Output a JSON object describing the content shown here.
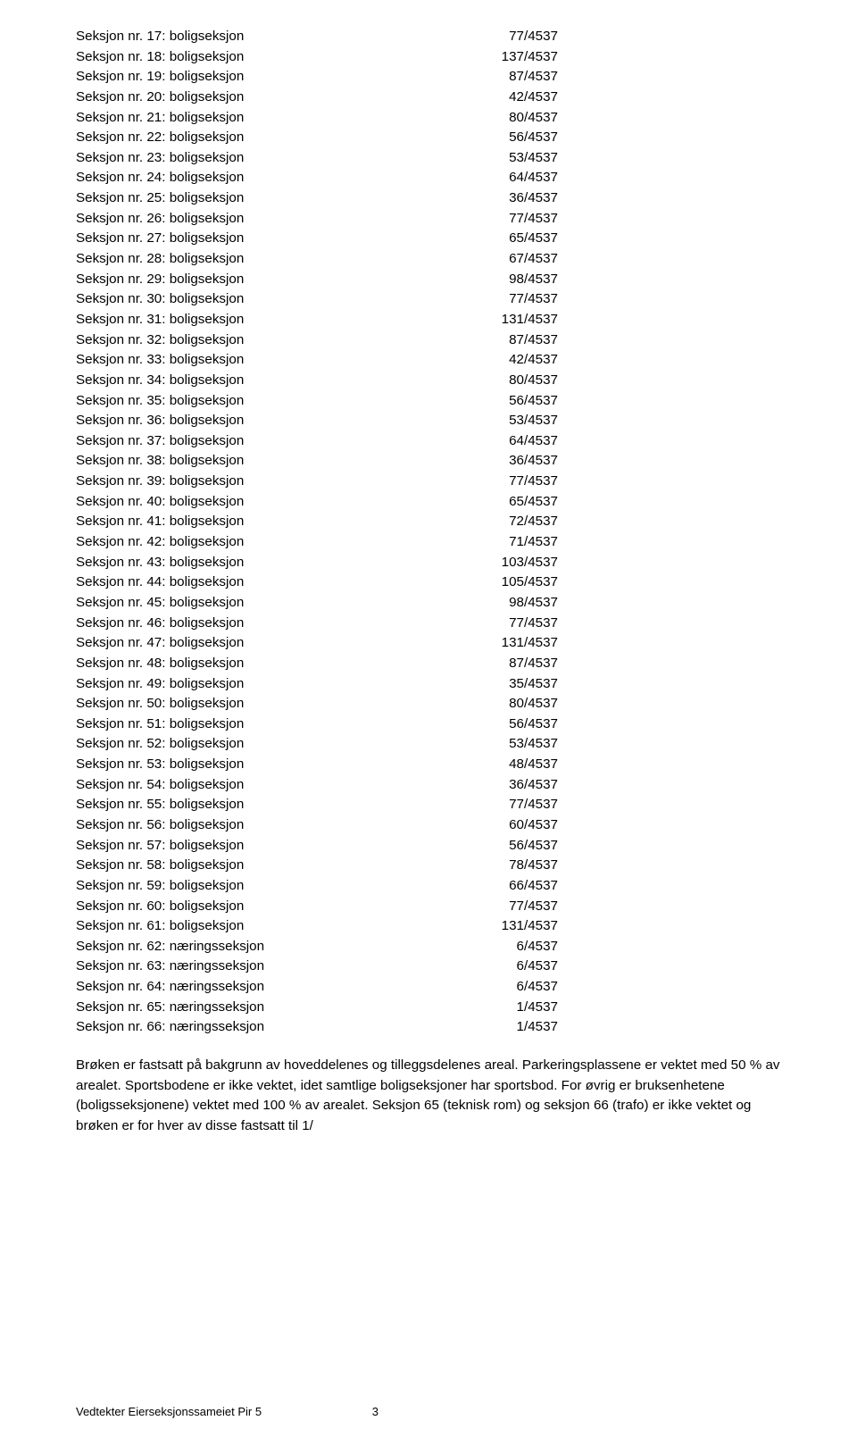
{
  "rows": [
    {
      "label": "Seksjon nr. 17: boligseksjon",
      "value": "77/4537"
    },
    {
      "label": "Seksjon nr. 18: boligseksjon",
      "value": "137/4537"
    },
    {
      "label": "Seksjon nr. 19: boligseksjon",
      "value": "87/4537"
    },
    {
      "label": "Seksjon nr. 20: boligseksjon",
      "value": "42/4537"
    },
    {
      "label": "Seksjon nr. 21: boligseksjon",
      "value": "80/4537"
    },
    {
      "label": "Seksjon nr. 22: boligseksjon",
      "value": "56/4537"
    },
    {
      "label": "Seksjon nr. 23: boligseksjon",
      "value": "53/4537"
    },
    {
      "label": "Seksjon nr. 24: boligseksjon",
      "value": "64/4537"
    },
    {
      "label": "Seksjon nr. 25: boligseksjon",
      "value": "36/4537"
    },
    {
      "label": "Seksjon nr. 26: boligseksjon",
      "value": "77/4537"
    },
    {
      "label": "Seksjon nr. 27: boligseksjon",
      "value": "65/4537"
    },
    {
      "label": "Seksjon nr. 28: boligseksjon",
      "value": "67/4537"
    },
    {
      "label": "Seksjon nr. 29: boligseksjon",
      "value": "98/4537"
    },
    {
      "label": "Seksjon nr. 30: boligseksjon",
      "value": "77/4537"
    },
    {
      "label": "Seksjon nr. 31: boligseksjon",
      "value": "131/4537"
    },
    {
      "label": "Seksjon nr. 32: boligseksjon",
      "value": "87/4537"
    },
    {
      "label": "Seksjon nr. 33: boligseksjon",
      "value": "42/4537"
    },
    {
      "label": "Seksjon nr. 34: boligseksjon",
      "value": "80/4537"
    },
    {
      "label": "Seksjon nr. 35: boligseksjon",
      "value": "56/4537"
    },
    {
      "label": "Seksjon nr. 36: boligseksjon",
      "value": "53/4537"
    },
    {
      "label": "Seksjon nr. 37: boligseksjon",
      "value": "64/4537"
    },
    {
      "label": "Seksjon nr. 38: boligseksjon",
      "value": "36/4537"
    },
    {
      "label": "Seksjon nr. 39: boligseksjon",
      "value": "77/4537"
    },
    {
      "label": "Seksjon nr. 40: boligseksjon",
      "value": "65/4537"
    },
    {
      "label": "Seksjon nr. 41: boligseksjon",
      "value": "72/4537"
    },
    {
      "label": "Seksjon nr. 42: boligseksjon",
      "value": "71/4537"
    },
    {
      "label": "Seksjon nr. 43: boligseksjon",
      "value": "103/4537"
    },
    {
      "label": "Seksjon nr. 44: boligseksjon",
      "value": "105/4537"
    },
    {
      "label": "Seksjon nr. 45: boligseksjon",
      "value": "98/4537"
    },
    {
      "label": "Seksjon nr. 46: boligseksjon",
      "value": "77/4537"
    },
    {
      "label": "Seksjon nr. 47: boligseksjon",
      "value": "131/4537"
    },
    {
      "label": "Seksjon nr. 48: boligseksjon",
      "value": "87/4537"
    },
    {
      "label": "Seksjon nr. 49: boligseksjon",
      "value": "35/4537"
    },
    {
      "label": "Seksjon nr. 50: boligseksjon",
      "value": "80/4537"
    },
    {
      "label": "Seksjon nr. 51: boligseksjon",
      "value": "56/4537"
    },
    {
      "label": "Seksjon nr. 52: boligseksjon",
      "value": "53/4537"
    },
    {
      "label": "Seksjon nr. 53: boligseksjon",
      "value": "48/4537"
    },
    {
      "label": "Seksjon nr. 54: boligseksjon",
      "value": "36/4537"
    },
    {
      "label": "Seksjon nr. 55: boligseksjon",
      "value": "77/4537"
    },
    {
      "label": "Seksjon nr. 56: boligseksjon",
      "value": "60/4537"
    },
    {
      "label": "Seksjon nr. 57: boligseksjon",
      "value": "56/4537"
    },
    {
      "label": "Seksjon nr. 58: boligseksjon",
      "value": "78/4537"
    },
    {
      "label": "Seksjon nr. 59: boligseksjon",
      "value": "66/4537"
    },
    {
      "label": "Seksjon nr. 60: boligseksjon",
      "value": "77/4537"
    },
    {
      "label": "Seksjon nr. 61: boligseksjon",
      "value": "131/4537"
    },
    {
      "label": "Seksjon nr. 62: næringsseksjon",
      "value": "6/4537"
    },
    {
      "label": "Seksjon nr. 63: næringsseksjon",
      "value": "6/4537"
    },
    {
      "label": "Seksjon nr. 64: næringsseksjon",
      "value": "6/4537"
    },
    {
      "label": "Seksjon nr. 65: næringsseksjon",
      "value": "1/4537"
    },
    {
      "label": "Seksjon nr. 66: næringsseksjon",
      "value": "1/4537"
    }
  ],
  "paragraph": "Brøken er fastsatt på bakgrunn av hoveddelenes og tilleggsdelenes areal. Parkeringsplassene er vektet med 50 % av arealet. Sportsbodene er ikke vektet, idet samtlige boligseksjoner har sportsbod. For øvrig er bruksenhetene (boligsseksjonene) vektet med 100 % av arealet. Seksjon 65 (teknisk rom) og seksjon 66 (trafo) er ikke vektet og brøken er for hver av disse fastsatt til 1/",
  "footer": {
    "title": "Vedtekter Eierseksjonssameiet Pir 5",
    "page": "3"
  }
}
